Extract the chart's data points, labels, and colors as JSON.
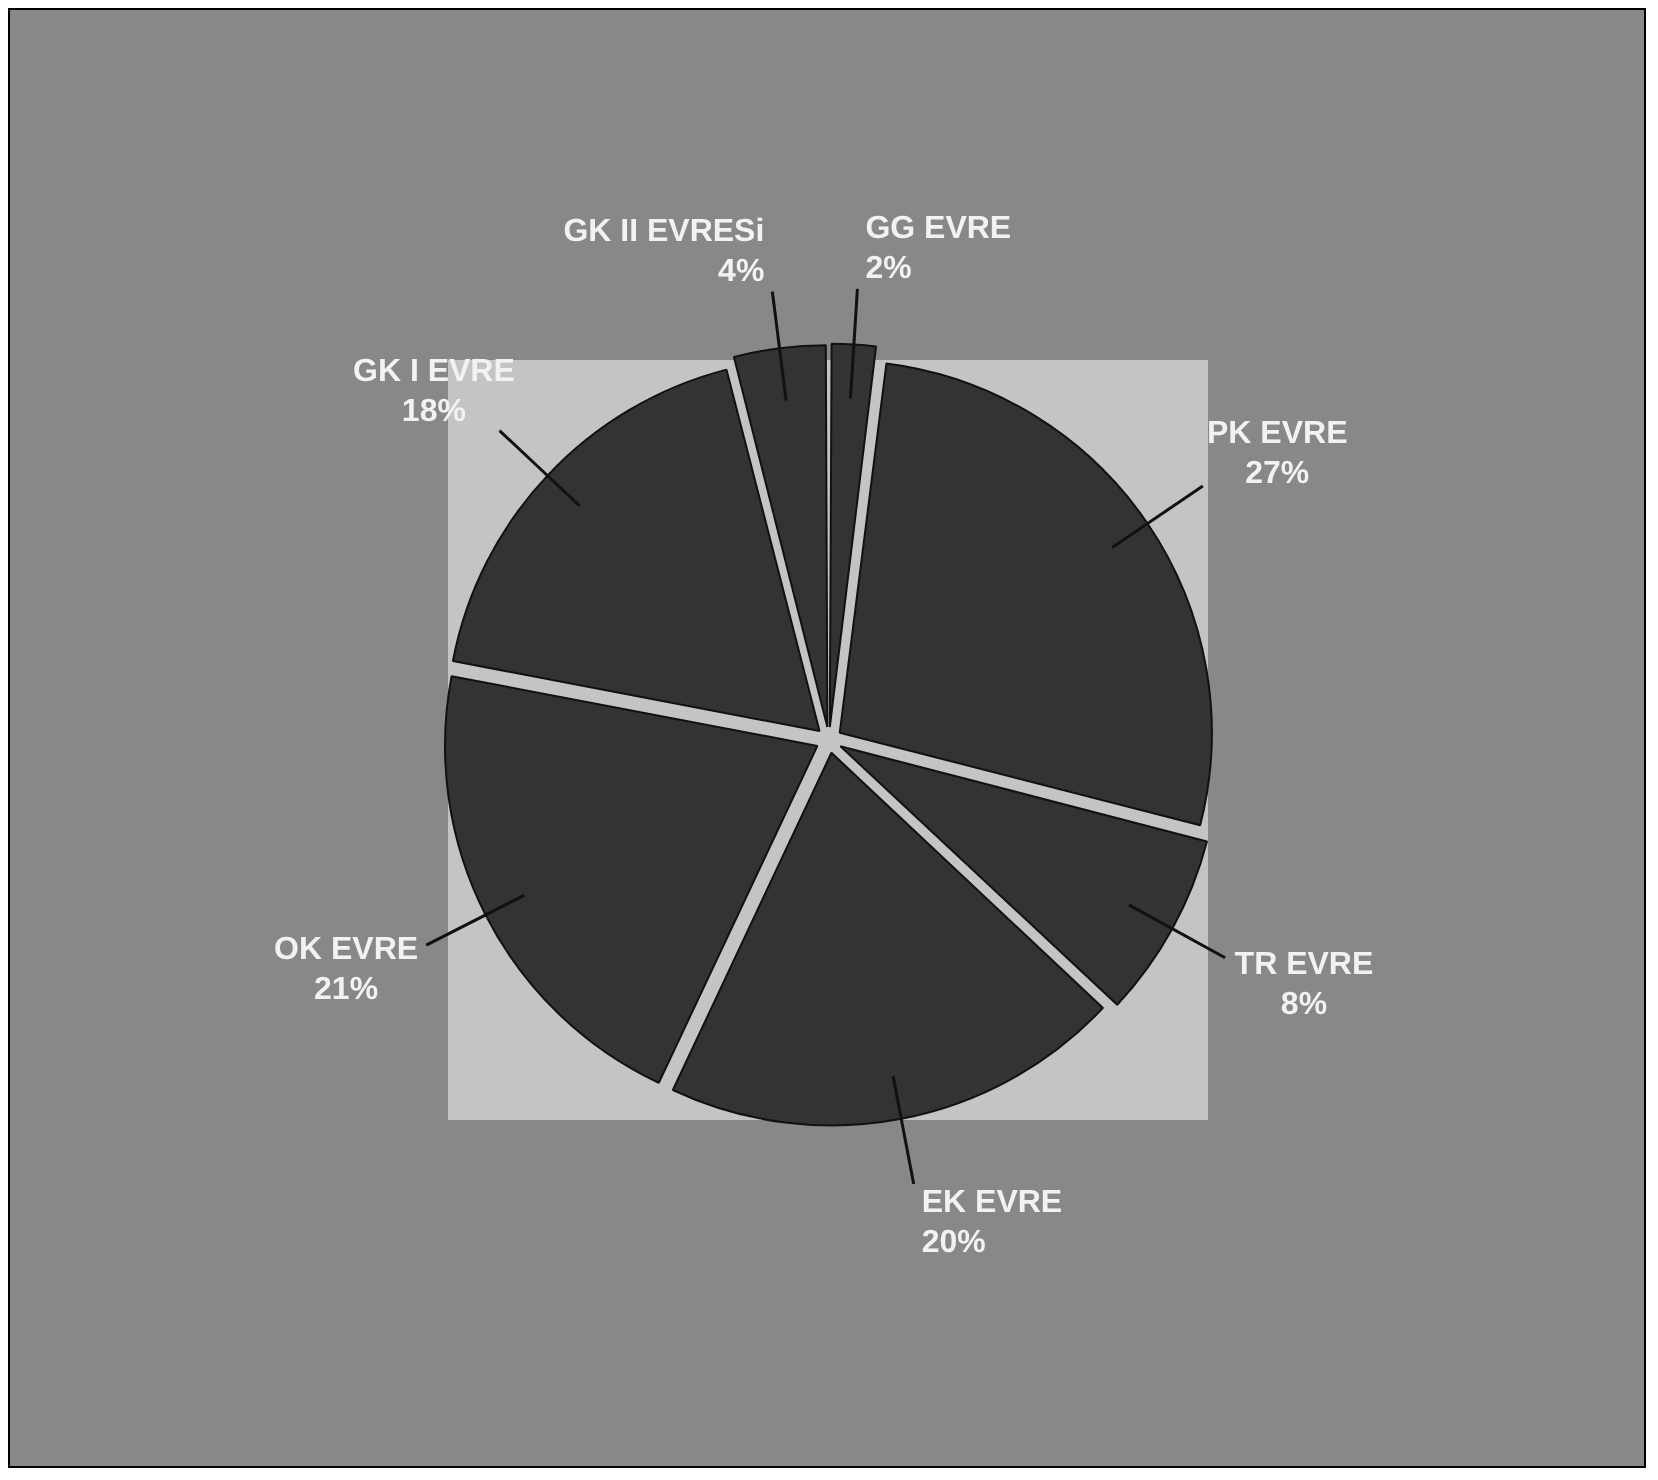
{
  "chart_data": {
    "type": "pie",
    "categories": [
      "GG EVRE",
      "PK EVRE",
      "TR EVRE",
      "EK EVRE",
      "OK EVRE",
      "GK I EVRE",
      "GK II EVRESi"
    ],
    "values": [
      2,
      27,
      8,
      20,
      21,
      18,
      4
    ],
    "value_labels": [
      "2%",
      "27%",
      "8%",
      "20%",
      "21%",
      "18%",
      "4%"
    ],
    "colors": [
      "#333333",
      "#333333",
      "#333333",
      "#333333",
      "#333333",
      "#333333",
      "#333333"
    ],
    "legend": false
  }
}
